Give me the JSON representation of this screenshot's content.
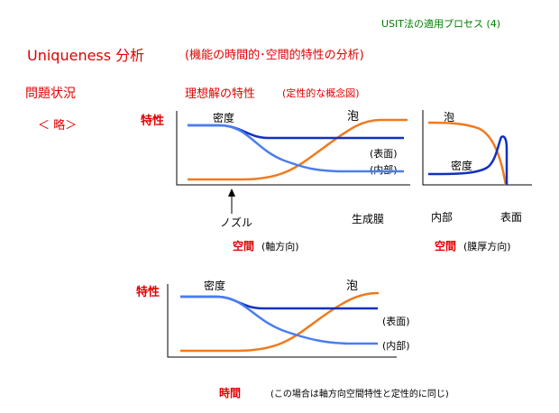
{
  "header": {
    "subtitle": "USIT法の適用プロセス (4)"
  },
  "title": {
    "main": "Uniqueness 分析",
    "sub": "(機能の時間的･空間的特性の分析)"
  },
  "left": {
    "problem": "問題状況",
    "omitted": "＜ 略＞"
  },
  "ideal": {
    "heading": "理想解の特性",
    "note": "(定性的な概念図)"
  },
  "chart_axial": {
    "ylabel": "特性",
    "density_label": "密度",
    "foam_label": "泡",
    "surface_label": "(表面)",
    "inner_label": "(内部)",
    "nozzle_label": "ノズル",
    "film_label": "生成膜",
    "xlabel_red": "空間",
    "xlabel_black": "(軸方向)"
  },
  "chart_film": {
    "foam_label": "泡",
    "density_label": "密度",
    "inner_x": "内部",
    "surface_x": "表面",
    "xlabel_red": "空間",
    "xlabel_black": "(膜厚方向)"
  },
  "chart_time": {
    "ylabel": "特性",
    "density_label": "密度",
    "foam_label": "泡",
    "surface_label": "(表面)",
    "inner_label": "(内部)",
    "xlabel_red": "時間",
    "xlabel_black": "(この場合は軸方向空間特性と定性的に同じ)"
  },
  "colors": {
    "orange": "#f07a1e",
    "navy": "#1030c0",
    "light_blue": "#4a7df0",
    "red": "#e00000",
    "green": "#008000"
  }
}
